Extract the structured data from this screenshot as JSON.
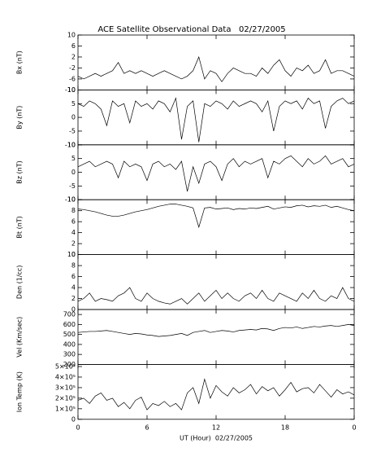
{
  "title": "ACE Satellite Observational Data   02/27/2005",
  "x_label": "UT (Hour)  02/27/2005",
  "chart_data": [
    {
      "type": "line",
      "y_label": "Bx (nT)",
      "color": "#000000",
      "x": [
        0,
        0.5,
        1,
        1.5,
        2,
        2.5,
        3,
        3.5,
        4,
        4.5,
        5,
        5.5,
        6,
        6.5,
        7,
        7.5,
        8,
        8.5,
        9,
        9.5,
        10,
        10.5,
        11,
        11.5,
        12,
        12.5,
        13,
        13.5,
        14,
        14.5,
        15,
        15.5,
        16,
        16.5,
        17,
        17.5,
        18,
        18.5,
        19,
        19.5,
        20,
        20.5,
        21,
        21.5,
        22,
        22.5,
        23,
        23.5,
        24
      ],
      "values": [
        -5,
        -6,
        -5,
        -4,
        -5,
        -4,
        -3,
        0,
        -4,
        -3,
        -4,
        -3,
        -4,
        -5,
        -4,
        -3,
        -4,
        -5,
        -6,
        -5,
        -3,
        2,
        -6,
        -3,
        -4,
        -7,
        -4,
        -2,
        -3,
        -4,
        -4,
        -5,
        -2,
        -4,
        -1,
        1,
        -3,
        -5,
        -2,
        -3,
        -1,
        -4,
        -3,
        1,
        -4,
        -3,
        -3,
        -4,
        -5
      ],
      "xlim": [
        0,
        24
      ],
      "xticks": [
        0,
        6,
        12,
        18,
        {
          "value": 24,
          "label": "0"
        }
      ],
      "ylim": [
        -10,
        10
      ],
      "yticks": [
        -10,
        -6,
        -2,
        2,
        6,
        10
      ]
    },
    {
      "type": "line",
      "y_label": "By (nT)",
      "color": "#000000",
      "x": [
        0,
        0.5,
        1,
        1.5,
        2,
        2.5,
        3,
        3.5,
        4,
        4.5,
        5,
        5.5,
        6,
        6.5,
        7,
        7.5,
        8,
        8.5,
        9,
        9.5,
        10,
        10.5,
        11,
        11.5,
        12,
        12.5,
        13,
        13.5,
        14,
        14.5,
        15,
        15.5,
        16,
        16.5,
        17,
        17.5,
        18,
        18.5,
        19,
        19.5,
        20,
        20.5,
        21,
        21.5,
        22,
        22.5,
        23,
        23.5,
        24
      ],
      "values": [
        5,
        4,
        6,
        5,
        3,
        -3,
        6,
        4,
        5,
        -2,
        6,
        4,
        5,
        3,
        6,
        5,
        2,
        7,
        -8,
        4,
        6,
        -9,
        5,
        4,
        6,
        5,
        3,
        6,
        4,
        5,
        6,
        5,
        2,
        6,
        -5,
        4,
        6,
        5,
        6,
        3,
        7,
        5,
        6,
        -4,
        4,
        6,
        7,
        5,
        6
      ],
      "xlim": [
        0,
        24
      ],
      "xticks": [
        0,
        6,
        12,
        18,
        {
          "value": 24,
          "label": "0"
        }
      ],
      "ylim": [
        -10,
        10
      ],
      "yticks": [
        -10,
        -5,
        0,
        5,
        10
      ]
    },
    {
      "type": "line",
      "y_label": "Bz (nT)",
      "color": "#000000",
      "x": [
        0,
        0.5,
        1,
        1.5,
        2,
        2.5,
        3,
        3.5,
        4,
        4.5,
        5,
        5.5,
        6,
        6.5,
        7,
        7.5,
        8,
        8.5,
        9,
        9.5,
        10,
        10.5,
        11,
        11.5,
        12,
        12.5,
        13,
        13.5,
        14,
        14.5,
        15,
        15.5,
        16,
        16.5,
        17,
        17.5,
        18,
        18.5,
        19,
        19.5,
        20,
        20.5,
        21,
        21.5,
        22,
        22.5,
        23,
        23.5,
        24
      ],
      "values": [
        2,
        3,
        4,
        2,
        3,
        4,
        3,
        -2,
        4,
        2,
        3,
        2,
        -3,
        3,
        4,
        2,
        3,
        1,
        4,
        -7,
        2,
        -4,
        3,
        4,
        2,
        -3,
        3,
        5,
        2,
        4,
        3,
        4,
        5,
        -2,
        4,
        3,
        5,
        6,
        4,
        2,
        5,
        3,
        4,
        6,
        3,
        4,
        5,
        2,
        3
      ],
      "xlim": [
        0,
        24
      ],
      "xticks": [
        0,
        6,
        12,
        18,
        {
          "value": 24,
          "label": "0"
        }
      ],
      "ylim": [
        -10,
        10
      ],
      "yticks": [
        -10,
        -5,
        0,
        5,
        10
      ]
    },
    {
      "type": "line",
      "y_label": "Bt (nT)",
      "color": "#000000",
      "x": [
        0,
        0.5,
        1,
        1.5,
        2,
        2.5,
        3,
        3.5,
        4,
        4.5,
        5,
        5.5,
        6,
        6.5,
        7,
        7.5,
        8,
        8.5,
        9,
        9.5,
        10,
        10.5,
        11,
        11.5,
        12,
        12.5,
        13,
        13.5,
        14,
        14.5,
        15,
        15.5,
        16,
        16.5,
        17,
        17.5,
        18,
        18.5,
        19,
        19.5,
        20,
        20.5,
        21,
        21.5,
        22,
        22.5,
        23,
        23.5,
        24
      ],
      "values": [
        8.3,
        8.2,
        8,
        7.8,
        7.5,
        7.2,
        7,
        7,
        7.2,
        7.5,
        7.8,
        8,
        8.2,
        8.5,
        8.8,
        9,
        9.2,
        9.2,
        9,
        8.8,
        8.5,
        5,
        8.5,
        8.6,
        8.3,
        8.4,
        8.5,
        8.2,
        8.4,
        8.3,
        8.5,
        8.4,
        8.6,
        8.8,
        8.3,
        8.5,
        8.7,
        8.6,
        8.9,
        9,
        8.7,
        8.9,
        8.8,
        9,
        8.6,
        8.8,
        8.5,
        8.2,
        8
      ],
      "xlim": [
        0,
        24
      ],
      "xticks": [
        0,
        6,
        12,
        18,
        {
          "value": 24,
          "label": "0"
        }
      ],
      "ylim": [
        0,
        10
      ],
      "yticks": [
        0,
        2,
        4,
        6,
        8,
        10
      ]
    },
    {
      "type": "line",
      "y_label": "Den (1/cc)",
      "color": "#000000",
      "x": [
        0,
        0.5,
        1,
        1.5,
        2,
        2.5,
        3,
        3.5,
        4,
        4.5,
        5,
        5.5,
        6,
        6.5,
        7,
        7.5,
        8,
        8.5,
        9,
        9.5,
        10,
        10.5,
        11,
        11.5,
        12,
        12.5,
        13,
        13.5,
        14,
        14.5,
        15,
        15.5,
        16,
        16.5,
        17,
        17.5,
        18,
        18.5,
        19,
        19.5,
        20,
        20.5,
        21,
        21.5,
        22,
        22.5,
        23,
        23.5,
        24
      ],
      "values": [
        1.5,
        2,
        3,
        1.5,
        2,
        1.8,
        1.5,
        2.5,
        3,
        4,
        2,
        1.5,
        3,
        2,
        1.5,
        1.2,
        1,
        1.5,
        2,
        1,
        2,
        3,
        1.5,
        2.5,
        3.5,
        2,
        3,
        2,
        1.5,
        2.5,
        3,
        2,
        3.5,
        2,
        1.5,
        3,
        2.5,
        2,
        1.5,
        3,
        2,
        3.5,
        2,
        1.5,
        2.5,
        2,
        4,
        2,
        1.5
      ],
      "xlim": [
        0,
        24
      ],
      "xticks": [
        0,
        6,
        12,
        18,
        {
          "value": 24,
          "label": "0"
        }
      ],
      "ylim": [
        0,
        10
      ],
      "yticks": [
        0,
        2,
        4,
        6,
        8,
        10
      ]
    },
    {
      "type": "line",
      "y_label": "Vel (Km/sec)",
      "color": "#000000",
      "x": [
        0,
        0.5,
        1,
        1.5,
        2,
        2.5,
        3,
        3.5,
        4,
        4.5,
        5,
        5.5,
        6,
        6.5,
        7,
        7.5,
        8,
        8.5,
        9,
        9.5,
        10,
        10.5,
        11,
        11.5,
        12,
        12.5,
        13,
        13.5,
        14,
        14.5,
        15,
        15.5,
        16,
        16.5,
        17,
        17.5,
        18,
        18.5,
        19,
        19.5,
        20,
        20.5,
        21,
        21.5,
        22,
        22.5,
        23,
        23.5,
        24
      ],
      "values": [
        520,
        525,
        530,
        530,
        535,
        540,
        530,
        520,
        510,
        500,
        510,
        505,
        495,
        490,
        480,
        485,
        490,
        500,
        510,
        490,
        520,
        530,
        540,
        520,
        530,
        540,
        535,
        525,
        540,
        545,
        550,
        545,
        560,
        555,
        540,
        560,
        570,
        565,
        575,
        560,
        570,
        580,
        575,
        585,
        590,
        580,
        590,
        600,
        590
      ],
      "xlim": [
        0,
        24
      ],
      "xticks": [
        0,
        6,
        12,
        18,
        {
          "value": 24,
          "label": "0"
        }
      ],
      "ylim": [
        200,
        750
      ],
      "yticks": [
        200,
        300,
        400,
        500,
        600,
        700
      ]
    },
    {
      "type": "line",
      "y_label": "Ion Temp (K)",
      "color": "#000000",
      "x": [
        0,
        0.5,
        1,
        1.5,
        2,
        2.5,
        3,
        3.5,
        4,
        4.5,
        5,
        5.5,
        6,
        6.5,
        7,
        7.5,
        8,
        8.5,
        9,
        9.5,
        10,
        10.5,
        11,
        11.5,
        12,
        12.5,
        13,
        13.5,
        14,
        14.5,
        15,
        15.5,
        16,
        16.5,
        17,
        17.5,
        18,
        18.5,
        19,
        19.5,
        20,
        20.5,
        21,
        21.5,
        22,
        22.5,
        23,
        23.5,
        24
      ],
      "values": [
        180000,
        200000,
        150000,
        220000,
        250000,
        180000,
        200000,
        120000,
        160000,
        100000,
        180000,
        210000,
        90000,
        150000,
        130000,
        170000,
        120000,
        150000,
        90000,
        250000,
        300000,
        150000,
        380000,
        200000,
        320000,
        260000,
        220000,
        300000,
        250000,
        280000,
        330000,
        240000,
        310000,
        270000,
        300000,
        220000,
        280000,
        350000,
        260000,
        290000,
        300000,
        250000,
        330000,
        270000,
        210000,
        280000,
        240000,
        260000,
        230000
      ],
      "xlim": [
        0,
        24
      ],
      "xticks": [
        0,
        6,
        12,
        18,
        {
          "value": 24,
          "label": "0"
        }
      ],
      "ylim": [
        0,
        520000
      ],
      "yticks": [
        0,
        {
          "value": 100000,
          "label": "1×10⁵"
        },
        {
          "value": 200000,
          "label": "2×10⁵"
        },
        {
          "value": 300000,
          "label": "3×10⁵"
        },
        {
          "value": 400000,
          "label": "4×10⁵"
        },
        {
          "value": 500000,
          "label": "5×10⁵"
        }
      ]
    }
  ]
}
